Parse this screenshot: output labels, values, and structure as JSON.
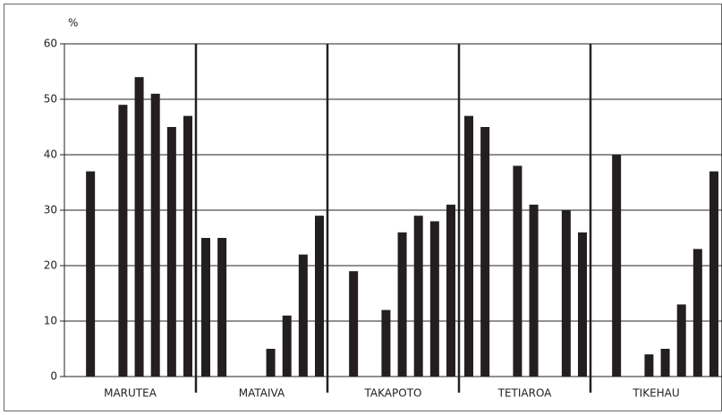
{
  "chart_data": {
    "type": "grouped-bar",
    "y_label": "%",
    "ylim": [
      0,
      60
    ],
    "yticks": [
      0,
      10,
      20,
      30,
      40,
      50,
      60
    ],
    "grid": true,
    "color": "#231f20",
    "groups": [
      {
        "name": "MARUTEA",
        "values": [
          null,
          37,
          null,
          49,
          54,
          51,
          45,
          47
        ]
      },
      {
        "name": "MATAIVA",
        "values": [
          25,
          25,
          null,
          null,
          5,
          11,
          22,
          29
        ]
      },
      {
        "name": "TAKAPOTO",
        "values": [
          null,
          19,
          null,
          12,
          26,
          29,
          28,
          31
        ]
      },
      {
        "name": "TETIAROA",
        "values": [
          47,
          45,
          null,
          38,
          31,
          null,
          30,
          26
        ]
      },
      {
        "name": "TIKEHAU",
        "values": [
          null,
          40,
          null,
          4,
          5,
          13,
          23,
          37
        ]
      }
    ]
  }
}
